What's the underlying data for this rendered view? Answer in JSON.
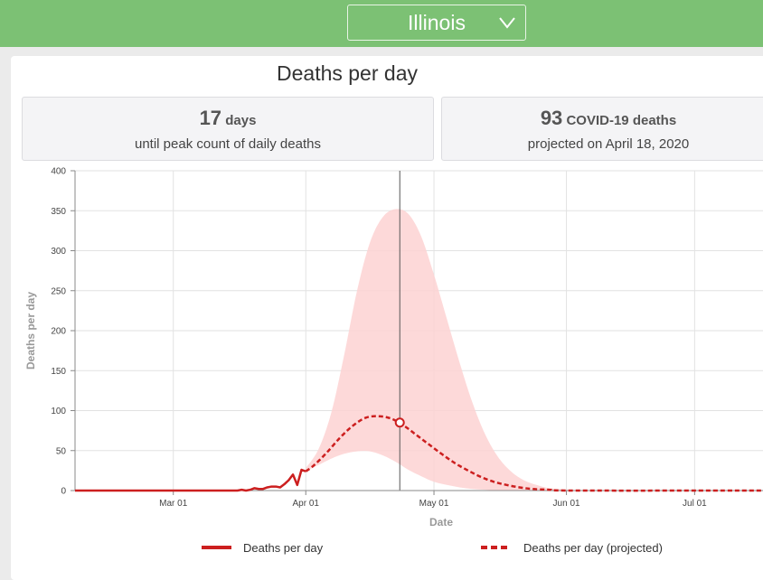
{
  "header": {
    "state_selected": "Illinois",
    "chevron": "chevron-down-icon"
  },
  "title": "Deaths per day",
  "stats": {
    "peak_days_value": "17",
    "peak_days_unit": "days",
    "peak_days_caption": "until peak count of daily deaths",
    "deaths_value": "93",
    "deaths_unit": "COVID-19 deaths",
    "deaths_caption": "projected on April 18, 2020"
  },
  "legend": {
    "actual": "Deaths per day",
    "projected": "Deaths per day (projected)"
  },
  "colors": {
    "topbar": "#7cc174",
    "series": "#cc1f1f",
    "band": "#fdd2d2",
    "marker": "#cc1f1f"
  },
  "chart_data": {
    "type": "line",
    "xlabel": "Date",
    "ylabel": "Deaths per day",
    "x_start": "2020-02-07",
    "x_end": "2020-07-17",
    "x_ticks": [
      {
        "date": "2020-03-01",
        "label": "Mar 01"
      },
      {
        "date": "2020-04-01",
        "label": "Apr 01"
      },
      {
        "date": "2020-05-01",
        "label": "May 01"
      },
      {
        "date": "2020-06-01",
        "label": "Jun 01"
      },
      {
        "date": "2020-07-01",
        "label": "Jul 01"
      }
    ],
    "ylim": [
      0,
      400
    ],
    "y_ticks": [
      0,
      50,
      100,
      150,
      200,
      250,
      300,
      350,
      400
    ],
    "grid": true,
    "legend_position": "bottom",
    "current_date": "2020-04-23",
    "marker": {
      "date": "2020-04-23",
      "value": 85
    },
    "series": [
      {
        "name": "Deaths per day",
        "style": "solid",
        "points": [
          {
            "date": "2020-02-07",
            "value": 0
          },
          {
            "date": "2020-03-16",
            "value": 0
          },
          {
            "date": "2020-03-17",
            "value": 1
          },
          {
            "date": "2020-03-18",
            "value": 0
          },
          {
            "date": "2020-03-19",
            "value": 1
          },
          {
            "date": "2020-03-20",
            "value": 3
          },
          {
            "date": "2020-03-21",
            "value": 2
          },
          {
            "date": "2020-03-22",
            "value": 2
          },
          {
            "date": "2020-03-23",
            "value": 4
          },
          {
            "date": "2020-03-24",
            "value": 5
          },
          {
            "date": "2020-03-25",
            "value": 5
          },
          {
            "date": "2020-03-26",
            "value": 4
          },
          {
            "date": "2020-03-27",
            "value": 8
          },
          {
            "date": "2020-03-28",
            "value": 13
          },
          {
            "date": "2020-03-29",
            "value": 20
          },
          {
            "date": "2020-03-30",
            "value": 7
          },
          {
            "date": "2020-03-31",
            "value": 26
          },
          {
            "date": "2020-04-01",
            "value": 24
          }
        ]
      },
      {
        "name": "Deaths per day (projected)",
        "style": "dashed",
        "points": [
          {
            "date": "2020-04-01",
            "value": 24
          },
          {
            "date": "2020-04-03",
            "value": 32
          },
          {
            "date": "2020-04-06",
            "value": 48
          },
          {
            "date": "2020-04-09",
            "value": 66
          },
          {
            "date": "2020-04-12",
            "value": 81
          },
          {
            "date": "2020-04-15",
            "value": 91
          },
          {
            "date": "2020-04-18",
            "value": 93
          },
          {
            "date": "2020-04-21",
            "value": 90
          },
          {
            "date": "2020-04-24",
            "value": 81
          },
          {
            "date": "2020-04-27",
            "value": 69
          },
          {
            "date": "2020-04-30",
            "value": 57
          },
          {
            "date": "2020-05-03",
            "value": 45
          },
          {
            "date": "2020-05-06",
            "value": 34
          },
          {
            "date": "2020-05-09",
            "value": 25
          },
          {
            "date": "2020-05-12",
            "value": 17
          },
          {
            "date": "2020-05-15",
            "value": 11
          },
          {
            "date": "2020-05-18",
            "value": 7
          },
          {
            "date": "2020-05-21",
            "value": 4
          },
          {
            "date": "2020-05-24",
            "value": 2
          },
          {
            "date": "2020-05-28",
            "value": 1
          },
          {
            "date": "2020-06-03",
            "value": 0
          },
          {
            "date": "2020-07-17",
            "value": 0
          }
        ]
      }
    ],
    "uncertainty_band": [
      {
        "date": "2020-04-01",
        "lower": 24,
        "upper": 28
      },
      {
        "date": "2020-04-04",
        "lower": 32,
        "upper": 52
      },
      {
        "date": "2020-04-07",
        "lower": 40,
        "upper": 98
      },
      {
        "date": "2020-04-10",
        "lower": 46,
        "upper": 170
      },
      {
        "date": "2020-04-13",
        "lower": 49,
        "upper": 250
      },
      {
        "date": "2020-04-16",
        "lower": 49,
        "upper": 310
      },
      {
        "date": "2020-04-19",
        "lower": 44,
        "upper": 342
      },
      {
        "date": "2020-04-22",
        "lower": 36,
        "upper": 352
      },
      {
        "date": "2020-04-25",
        "lower": 26,
        "upper": 346
      },
      {
        "date": "2020-04-28",
        "lower": 18,
        "upper": 318
      },
      {
        "date": "2020-05-01",
        "lower": 11,
        "upper": 270
      },
      {
        "date": "2020-05-04",
        "lower": 7,
        "upper": 215
      },
      {
        "date": "2020-05-07",
        "lower": 4,
        "upper": 160
      },
      {
        "date": "2020-05-10",
        "lower": 2,
        "upper": 110
      },
      {
        "date": "2020-05-13",
        "lower": 1,
        "upper": 70
      },
      {
        "date": "2020-05-16",
        "lower": 0,
        "upper": 42
      },
      {
        "date": "2020-05-19",
        "lower": 0,
        "upper": 24
      },
      {
        "date": "2020-05-22",
        "lower": 0,
        "upper": 13
      },
      {
        "date": "2020-05-25",
        "lower": 0,
        "upper": 7
      },
      {
        "date": "2020-05-28",
        "lower": 0,
        "upper": 3
      },
      {
        "date": "2020-06-02",
        "lower": 0,
        "upper": 1
      },
      {
        "date": "2020-06-06",
        "lower": 0,
        "upper": 0
      }
    ]
  }
}
